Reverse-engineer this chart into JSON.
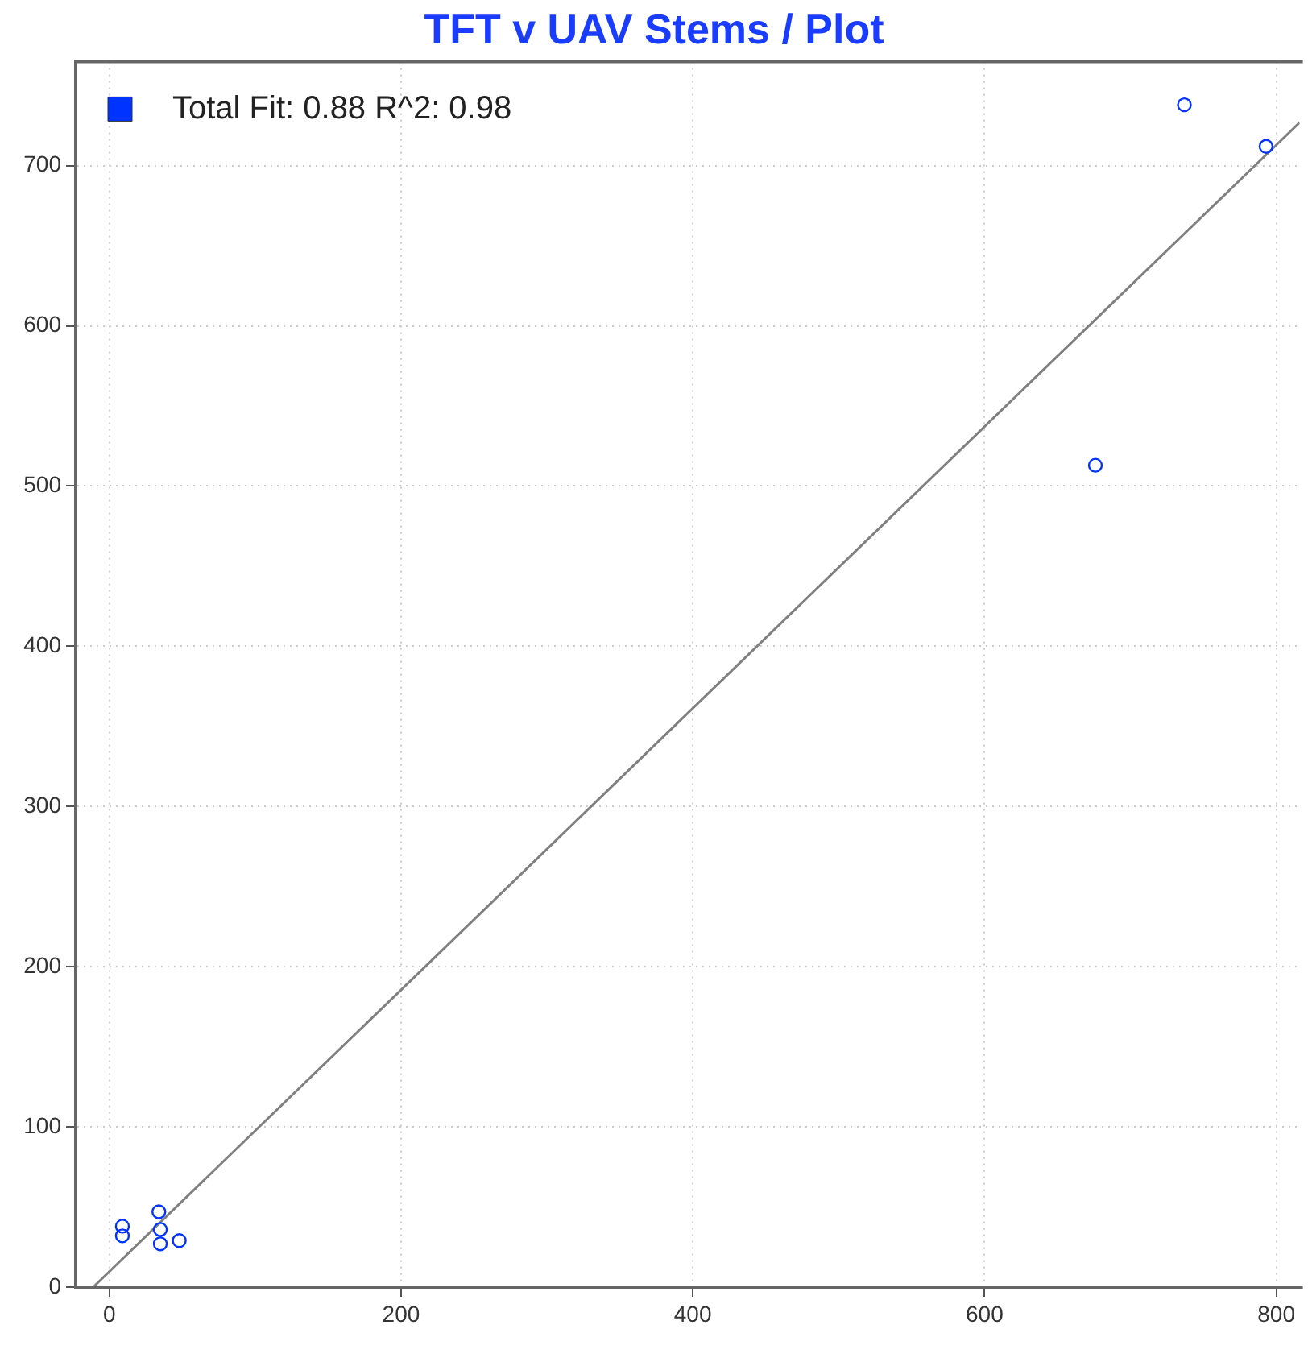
{
  "chart_data": {
    "type": "scatter",
    "title": "TFT v UAV Stems / Plot",
    "series": [
      {
        "name": "Total Fit: 0.88 R^2: 0.98",
        "color": "#0033ff",
        "marker": "circle",
        "x": [
          737,
          793,
          676,
          9,
          9,
          34,
          35,
          35,
          48
        ],
        "values": [
          738,
          712,
          513,
          38,
          32,
          47,
          36,
          27,
          29
        ]
      },
      {
        "type": "line",
        "marker": "none",
        "color": "#808080",
        "x": [
          -11,
          816
        ],
        "values": [
          0,
          727
        ]
      }
    ],
    "xlim": [
      -23,
      816
    ],
    "ylim": [
      0,
      765
    ],
    "xticks": [
      0,
      200,
      400,
      600,
      800
    ],
    "yticks": [
      0,
      100,
      200,
      300,
      400,
      500,
      600,
      700
    ],
    "grid": true,
    "legend": "top left"
  }
}
